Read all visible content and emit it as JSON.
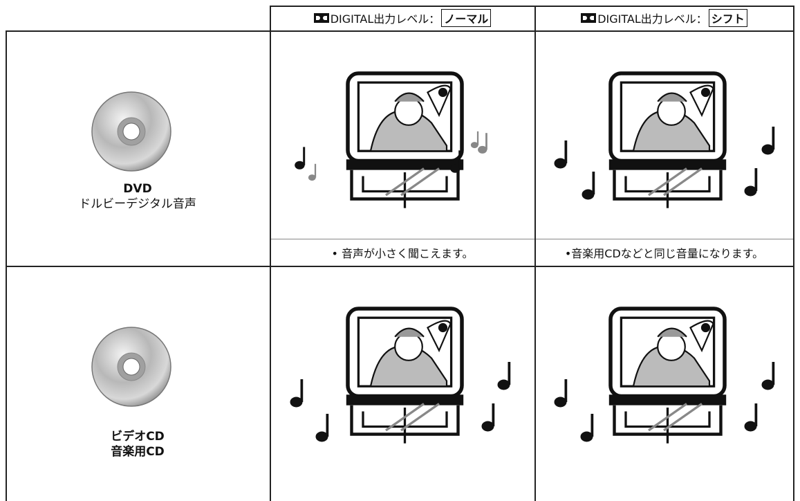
{
  "header": {
    "columns": [
      {
        "label": "DIGITAL出力レベル：",
        "mode": "ノーマル"
      },
      {
        "label": "DIGITAL出力レベル：",
        "mode": "シフト"
      }
    ]
  },
  "rows": [
    {
      "source": [
        "DVD",
        "ドルビーデジタル音声"
      ],
      "notes": [
        "• 音声が小さく聞こえます。",
        "•音楽用CDなどと同じ音量になります。"
      ]
    },
    {
      "source": [
        "ビデオCD",
        "音楽用CD"
      ]
    }
  ]
}
